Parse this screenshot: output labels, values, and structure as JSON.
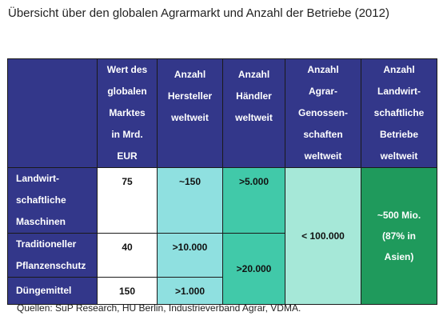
{
  "title": "Übersicht über den globalen Agrarmarkt und Anzahl der Betriebe (2012)",
  "columns": {
    "markt": "Wert des\nglobalen\nMarktes\nin Mrd.\nEUR",
    "hersteller": "Anzahl\nHersteller\nweltweit",
    "haendler": "Anzahl\nHändler\nweltweit",
    "genossenschaften": "Anzahl\nAgrar-\nGenossen-\nschaften\nweltweit",
    "betriebe": "Anzahl\nLandwirt-\nschaftliche\nBetriebe\nweltweit"
  },
  "rows": [
    {
      "label": "Landwirt-\nschaftliche\nMaschinen",
      "markt": "75",
      "hersteller": "~150",
      "haendler": ">5.000"
    },
    {
      "label": "Traditioneller\nPflanzenschutz",
      "markt": "40",
      "hersteller": ">10.000"
    },
    {
      "label": "Düngemittel",
      "markt": "150",
      "hersteller": ">1.000"
    }
  ],
  "merged": {
    "haendler_23": ">20.000",
    "genossenschaften": "< 100.000",
    "betriebe": "~500 Mio.\n(87% in\nAsien)"
  },
  "source": "Quellen: SuP Research, HU Berlin, Industrieverband Agrar, VDMA.",
  "colors": {
    "header": "#33378a",
    "light_aqua": "#8fe0e0",
    "mint": "#41c9a9",
    "pale_mint": "#a6e8d8",
    "green": "#1f9a5c"
  }
}
